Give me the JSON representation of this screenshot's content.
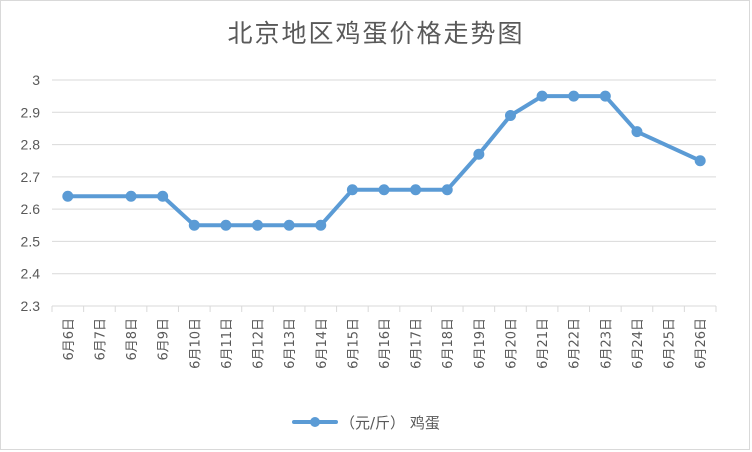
{
  "chart_data": {
    "type": "line",
    "title": "北京地区鸡蛋价格走势图",
    "categories": [
      "6月6日",
      "6月7日",
      "6月8日",
      "6月9日",
      "6月10日",
      "6月11日",
      "6月12日",
      "6月13日",
      "6月14日",
      "6月15日",
      "6月16日",
      "6月17日",
      "6月18日",
      "6月19日",
      "6月20日",
      "6月21日",
      "6月22日",
      "6月23日",
      "6月24日",
      "6月25日",
      "6月26日"
    ],
    "series": [
      {
        "name": "（元/斤） 鸡蛋",
        "color": "#5b9bd5",
        "points": [
          {
            "x": "6月6日",
            "y": 2.64
          },
          {
            "x": "6月8日",
            "y": 2.64
          },
          {
            "x": "6月9日",
            "y": 2.64
          },
          {
            "x": "6月10日",
            "y": 2.55
          },
          {
            "x": "6月11日",
            "y": 2.55
          },
          {
            "x": "6月12日",
            "y": 2.55
          },
          {
            "x": "6月13日",
            "y": 2.55
          },
          {
            "x": "6月14日",
            "y": 2.55
          },
          {
            "x": "6月15日",
            "y": 2.66
          },
          {
            "x": "6月16日",
            "y": 2.66
          },
          {
            "x": "6月17日",
            "y": 2.66
          },
          {
            "x": "6月18日",
            "y": 2.66
          },
          {
            "x": "6月19日",
            "y": 2.77
          },
          {
            "x": "6月20日",
            "y": 2.89
          },
          {
            "x": "6月21日",
            "y": 2.95
          },
          {
            "x": "6月22日",
            "y": 2.95
          },
          {
            "x": "6月23日",
            "y": 2.95
          },
          {
            "x": "6月24日",
            "y": 2.84
          },
          {
            "x": "6月26日",
            "y": 2.75
          }
        ]
      }
    ],
    "yticks": [
      "2.3",
      "2.4",
      "2.5",
      "2.6",
      "2.7",
      "2.8",
      "2.9",
      "3"
    ],
    "ylim": [
      2.3,
      3.0
    ],
    "grid": true,
    "legend_position": "bottom"
  }
}
